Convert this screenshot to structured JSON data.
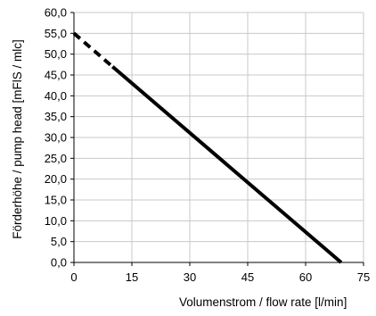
{
  "chart_data": {
    "type": "line",
    "xlabel": "Volumenstrom / flow rate [l/min]",
    "ylabel": "Förderhöhe / pump head [mFlS / mlc]",
    "xlim": [
      0,
      75
    ],
    "ylim": [
      0,
      60
    ],
    "x_ticks": [
      "0",
      "15",
      "30",
      "45",
      "60",
      "75"
    ],
    "y_ticks": [
      "0,0",
      "5,0",
      "10,0",
      "15,0",
      "20,0",
      "25,0",
      "30,0",
      "35,0",
      "40,0",
      "45,0",
      "50,0",
      "55,0",
      "60,0"
    ],
    "grid": true,
    "series": [
      {
        "segments": [
          {
            "style": "dashed",
            "x": [
              0,
              10
            ],
            "y": [
              55,
              47
            ]
          },
          {
            "style": "solid",
            "x": [
              10,
              69.2
            ],
            "y": [
              47,
              0
            ]
          }
        ]
      }
    ]
  }
}
